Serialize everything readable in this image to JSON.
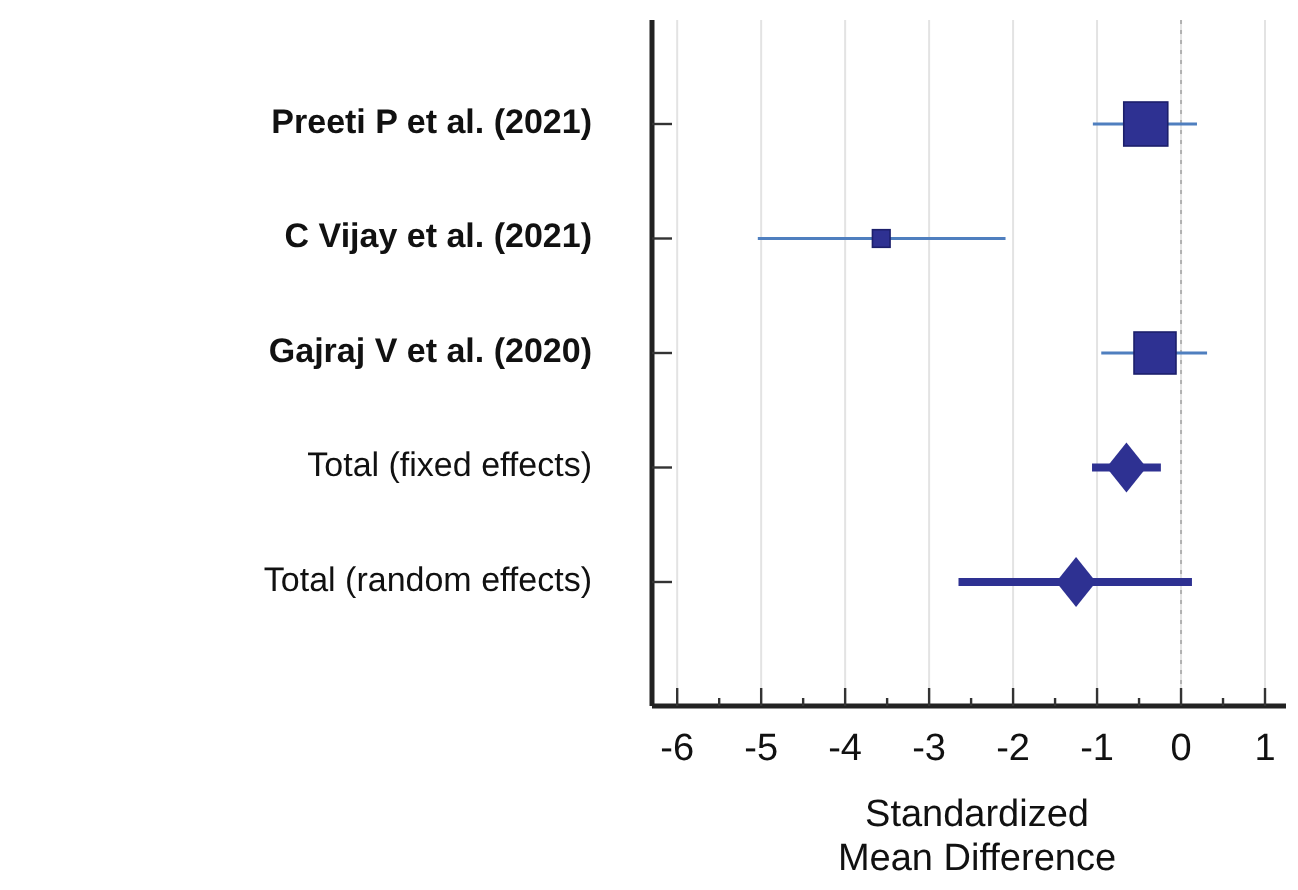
{
  "chart_data": {
    "type": "scatter",
    "orientation": "horizontal",
    "xlabel": "Standardized Mean Difference",
    "categories": [
      "Preeti P et al. (2021)",
      "C Vijay et al. (2021)",
      "Gajraj V et al. (2020)",
      "Total (fixed effects)",
      "Total (random effects)"
    ],
    "series": [
      {
        "type": "bubble",
        "marker": "square",
        "color": "#2e3192",
        "values": [
          -0.42,
          -3.57,
          -0.31,
          null,
          null
        ],
        "errors": [
          [
            -1.05,
            0.19
          ],
          [
            -5.04,
            -2.09
          ],
          [
            -0.95,
            0.31
          ],
          null,
          null
        ],
        "sizes": [
          1,
          0.16,
          0.91,
          null,
          null
        ]
      },
      {
        "type": "scatter",
        "marker": "diamond",
        "color": "#2e3192",
        "values": [
          null,
          null,
          null,
          -0.65,
          -1.25
        ],
        "errors": [
          null,
          null,
          null,
          [
            -1.06,
            -0.24
          ],
          [
            -2.65,
            0.13
          ]
        ]
      }
    ],
    "xlim": [
      -6.3,
      1.25
    ],
    "xticks": [
      -6,
      {
        "value": -5.5,
        "label": null
      },
      -5,
      {
        "value": -4.5,
        "label": null
      },
      -4,
      {
        "value": -3.5,
        "label": null
      },
      -3,
      {
        "value": -2.5,
        "label": null
      },
      -2,
      {
        "value": -1.5,
        "label": null
      },
      -1,
      {
        "value": -0.5,
        "label": null
      },
      0,
      {
        "value": 0.5,
        "label": null
      },
      1
    ],
    "grid": "x",
    "ref_lines": [
      {
        "axis": "x",
        "value": 0,
        "color": "#b0b0b0",
        "line_style": "dotted"
      }
    ]
  }
}
